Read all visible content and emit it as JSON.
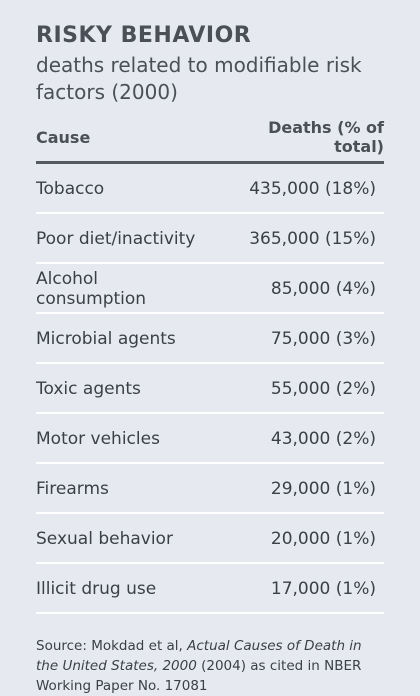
{
  "title": "RISKY BEHAVIOR",
  "subtitle": "deaths related to modifiable risk factors (2000)",
  "table": {
    "headers": [
      "Cause",
      "Deaths (% of total)"
    ]
  },
  "chart_data": {
    "type": "table",
    "title": "RISKY BEHAVIOR",
    "subtitle": "deaths related to modifiable risk factors (2000)",
    "columns": [
      "Cause",
      "Deaths (% of total)"
    ],
    "rows": [
      {
        "cause": "Tobacco",
        "deaths_text": "435,000 (18%)",
        "deaths": 435000,
        "percent": 18
      },
      {
        "cause": "Poor diet/inactivity",
        "deaths_text": "365,000 (15%)",
        "deaths": 365000,
        "percent": 15
      },
      {
        "cause": "Alcohol consumption",
        "deaths_text": "85,000 (4%)",
        "deaths": 85000,
        "percent": 4
      },
      {
        "cause": "Microbial agents",
        "deaths_text": "75,000 (3%)",
        "deaths": 75000,
        "percent": 3
      },
      {
        "cause": "Toxic agents",
        "deaths_text": "55,000 (2%)",
        "deaths": 55000,
        "percent": 2
      },
      {
        "cause": "Motor vehicles",
        "deaths_text": "43,000 (2%)",
        "deaths": 43000,
        "percent": 2
      },
      {
        "cause": "Firearms",
        "deaths_text": "29,000 (1%)",
        "deaths": 29000,
        "percent": 1
      },
      {
        "cause": "Sexual behavior",
        "deaths_text": "20,000 (1%)",
        "deaths": 20000,
        "percent": 1
      },
      {
        "cause": "Illicit drug use",
        "deaths_text": "17,000 (1%)",
        "deaths": 17000,
        "percent": 1
      }
    ]
  },
  "source": {
    "prefix": "Source: Mokdad et al, ",
    "work_title": "Actual Causes of Death in the United States, 2000",
    "suffix": " (2004) as cited in NBER Working Paper No. 17081"
  },
  "colors": {
    "background": "#e6eaf0",
    "text": "#3a3f48",
    "rule": "#555a62",
    "row_divider": "#ffffff"
  }
}
